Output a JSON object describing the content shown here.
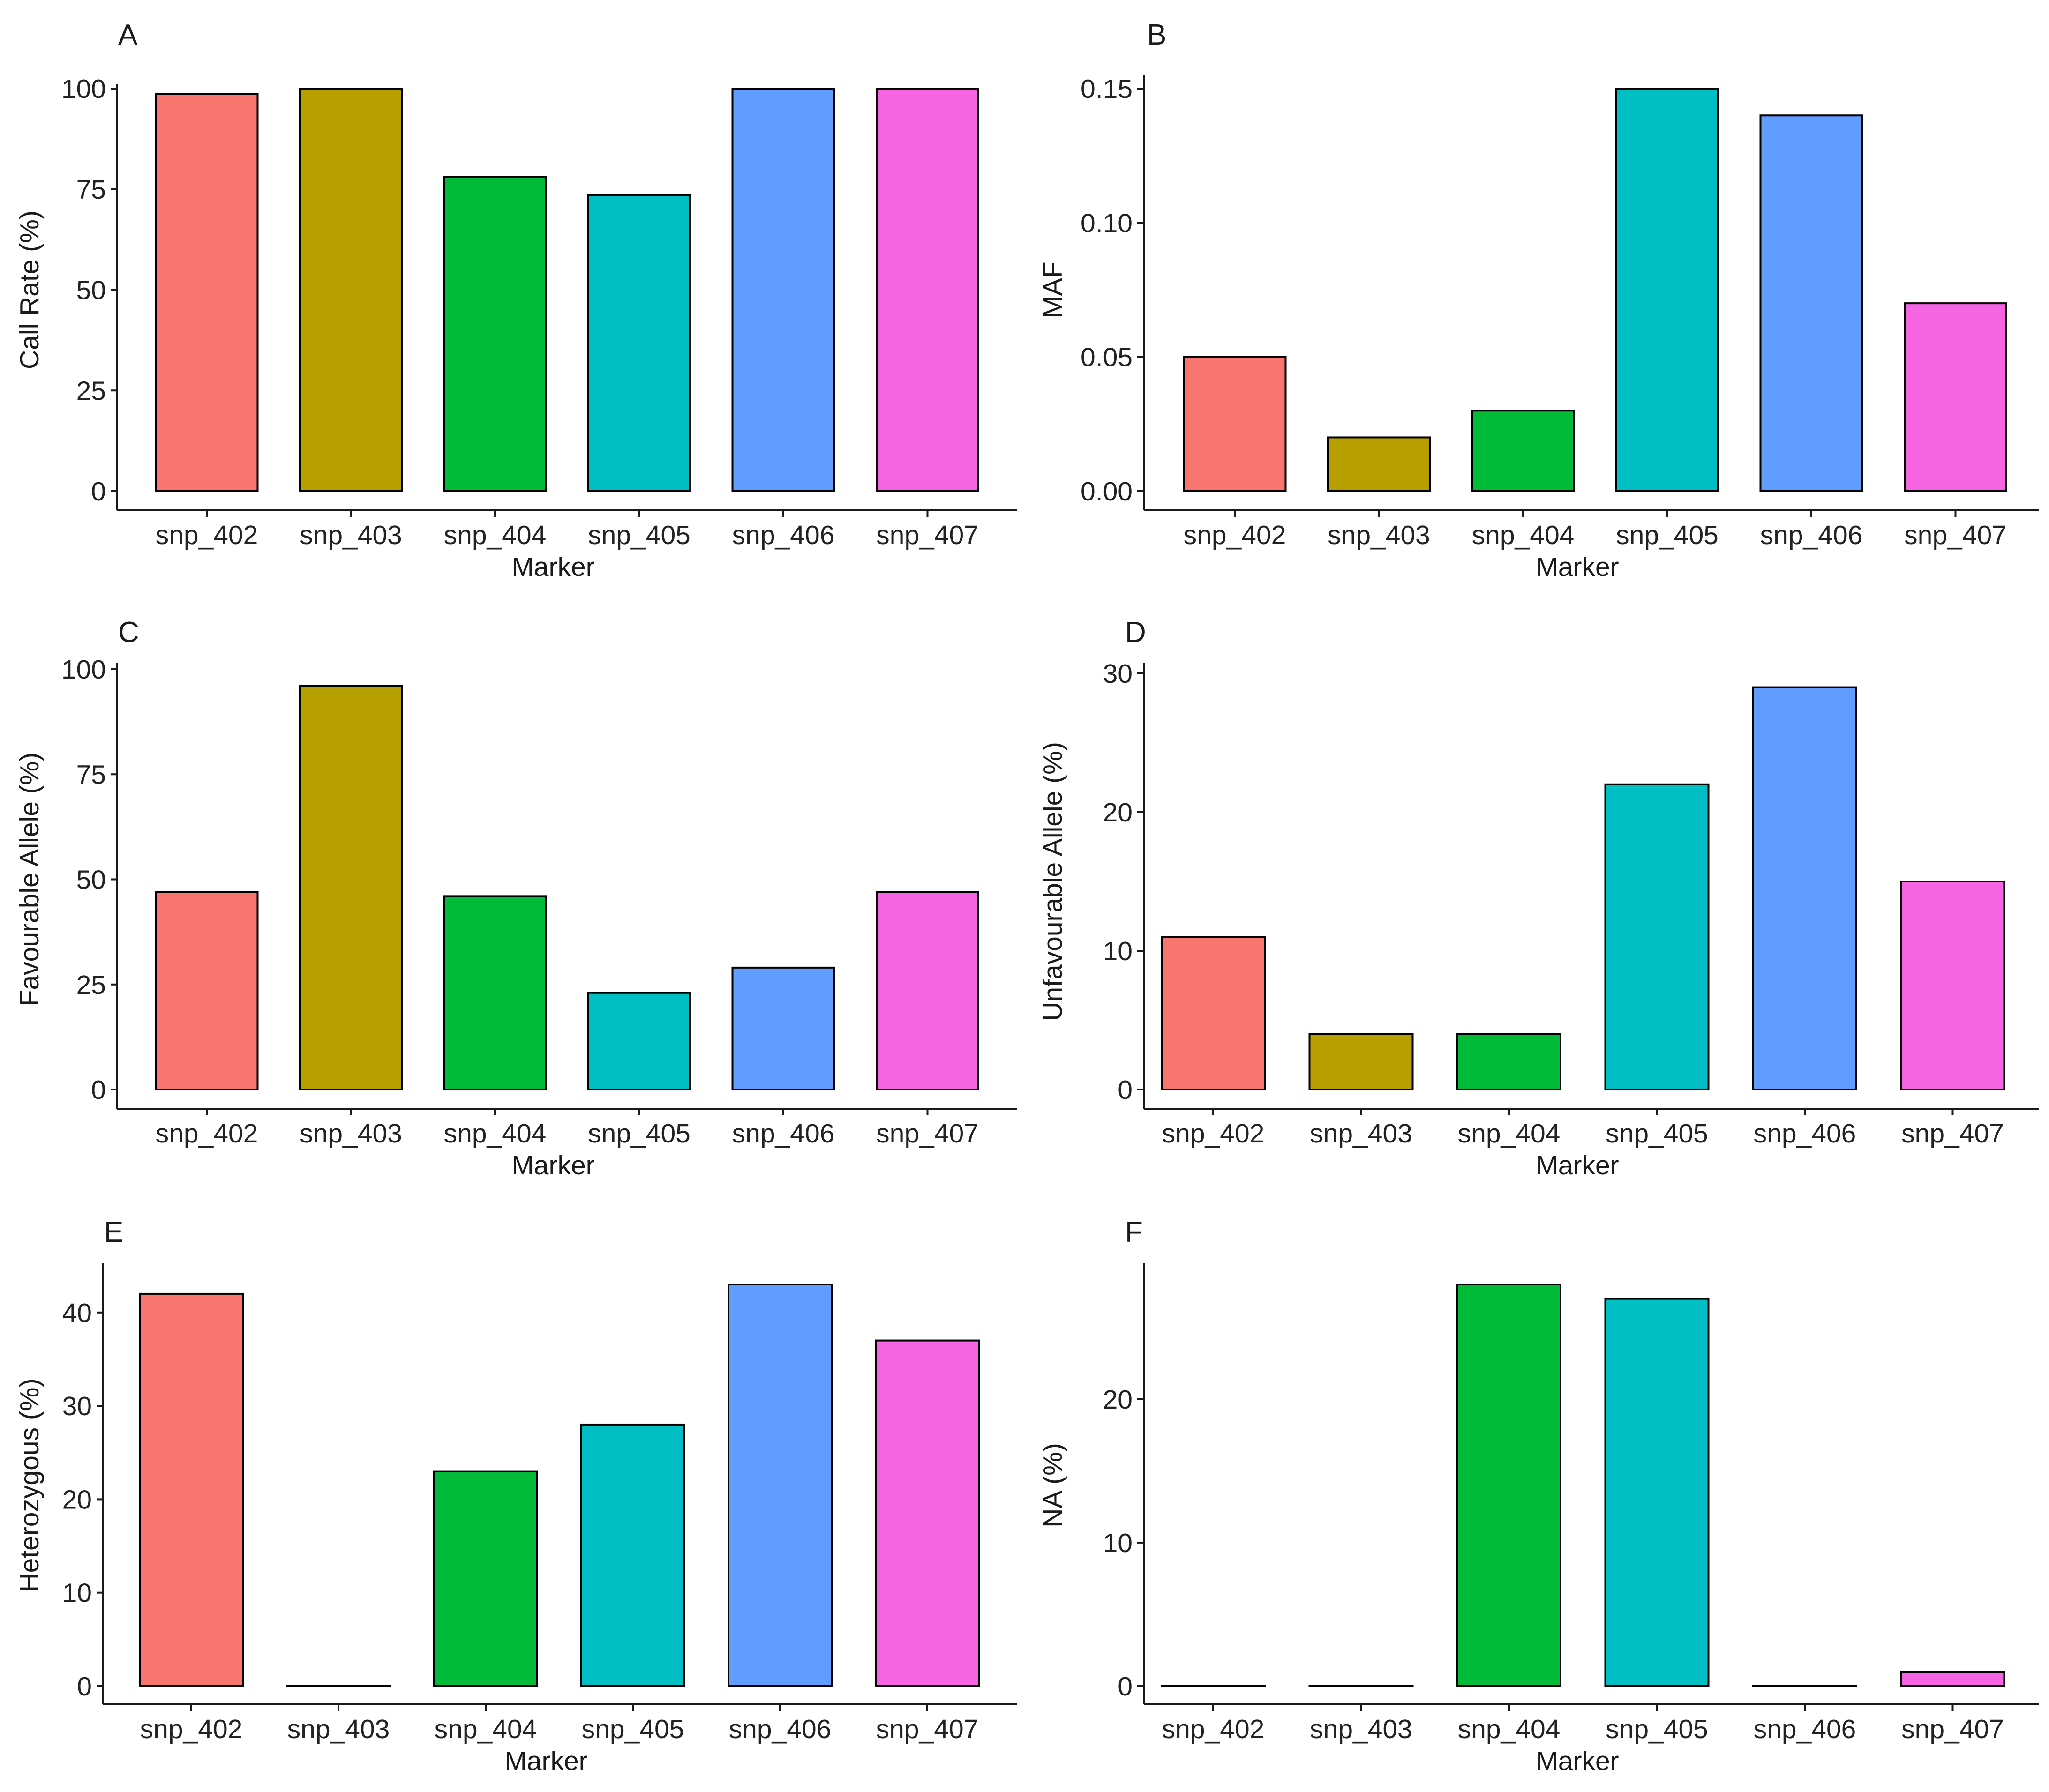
{
  "colors": {
    "snp_402": "#F8766D",
    "snp_403": "#B79F00",
    "snp_404": "#00BA38",
    "snp_405": "#00BFC4",
    "snp_406": "#619CFF",
    "snp_407": "#F564E3"
  },
  "chart_data": [
    {
      "type": "bar",
      "panel": "A",
      "categories": [
        "snp_402",
        "snp_403",
        "snp_404",
        "snp_405",
        "snp_406",
        "snp_407"
      ],
      "values": [
        98.7,
        100,
        78,
        73.5,
        100,
        100
      ],
      "xlabel": "Marker",
      "ylabel": "Call Rate (%)",
      "ylim": [
        0,
        100
      ],
      "yticks": [
        0,
        25,
        50,
        75,
        100
      ],
      "ytick_labels": [
        "0",
        "25",
        "50",
        "75",
        "100"
      ],
      "grid": false,
      "legend": "none"
    },
    {
      "type": "bar",
      "panel": "B",
      "categories": [
        "snp_402",
        "snp_403",
        "snp_404",
        "snp_405",
        "snp_406",
        "snp_407"
      ],
      "values": [
        0.05,
        0.02,
        0.03,
        0.15,
        0.14,
        0.07
      ],
      "xlabel": "Marker",
      "ylabel": "MAF",
      "ylim": [
        0,
        0.15
      ],
      "yticks": [
        0,
        0.05,
        0.1,
        0.15
      ],
      "ytick_labels": [
        "0.00",
        "0.05",
        "0.10",
        "0.15"
      ],
      "grid": false,
      "legend": "none"
    },
    {
      "type": "bar",
      "panel": "C",
      "categories": [
        "snp_402",
        "snp_403",
        "snp_404",
        "snp_405",
        "snp_406",
        "snp_407"
      ],
      "values": [
        47,
        96,
        46,
        23,
        29,
        47
      ],
      "xlabel": "Marker",
      "ylabel": "Favourable Allele (%)",
      "ylim": [
        0,
        100
      ],
      "yticks": [
        0,
        25,
        50,
        75,
        100
      ],
      "ytick_labels": [
        "0",
        "25",
        "50",
        "75",
        "100"
      ],
      "grid": false,
      "legend": "none"
    },
    {
      "type": "bar",
      "panel": "D",
      "categories": [
        "snp_402",
        "snp_403",
        "snp_404",
        "snp_405",
        "snp_406",
        "snp_407"
      ],
      "values": [
        11,
        4,
        4,
        22,
        29,
        15
      ],
      "xlabel": "Marker",
      "ylabel": "Unfavourable Allele (%)",
      "ylim": [
        0,
        30
      ],
      "yticks": [
        0,
        10,
        20,
        30
      ],
      "ytick_labels": [
        "0",
        "10",
        "20",
        "30"
      ],
      "grid": false,
      "legend": "none"
    },
    {
      "type": "bar",
      "panel": "E",
      "categories": [
        "snp_402",
        "snp_403",
        "snp_404",
        "snp_405",
        "snp_406",
        "snp_407"
      ],
      "values": [
        42,
        0,
        23,
        28,
        43,
        37
      ],
      "xlabel": "Marker",
      "ylabel": "Heterozygous (%)",
      "ylim": [
        0,
        43
      ],
      "yticks": [
        0,
        10,
        20,
        30,
        40
      ],
      "ytick_labels": [
        "0",
        "10",
        "20",
        "30",
        "40"
      ],
      "grid": false,
      "legend": "none"
    },
    {
      "type": "bar",
      "panel": "F",
      "categories": [
        "snp_402",
        "snp_403",
        "snp_404",
        "snp_405",
        "snp_406",
        "snp_407"
      ],
      "values": [
        0,
        0,
        28,
        27,
        0,
        1
      ],
      "xlabel": "Marker",
      "ylabel": "NA (%)",
      "ylim": [
        0,
        28
      ],
      "yticks": [
        0,
        10,
        20
      ],
      "ytick_labels": [
        "0",
        "10",
        "20"
      ],
      "grid": false,
      "legend": "none"
    }
  ]
}
